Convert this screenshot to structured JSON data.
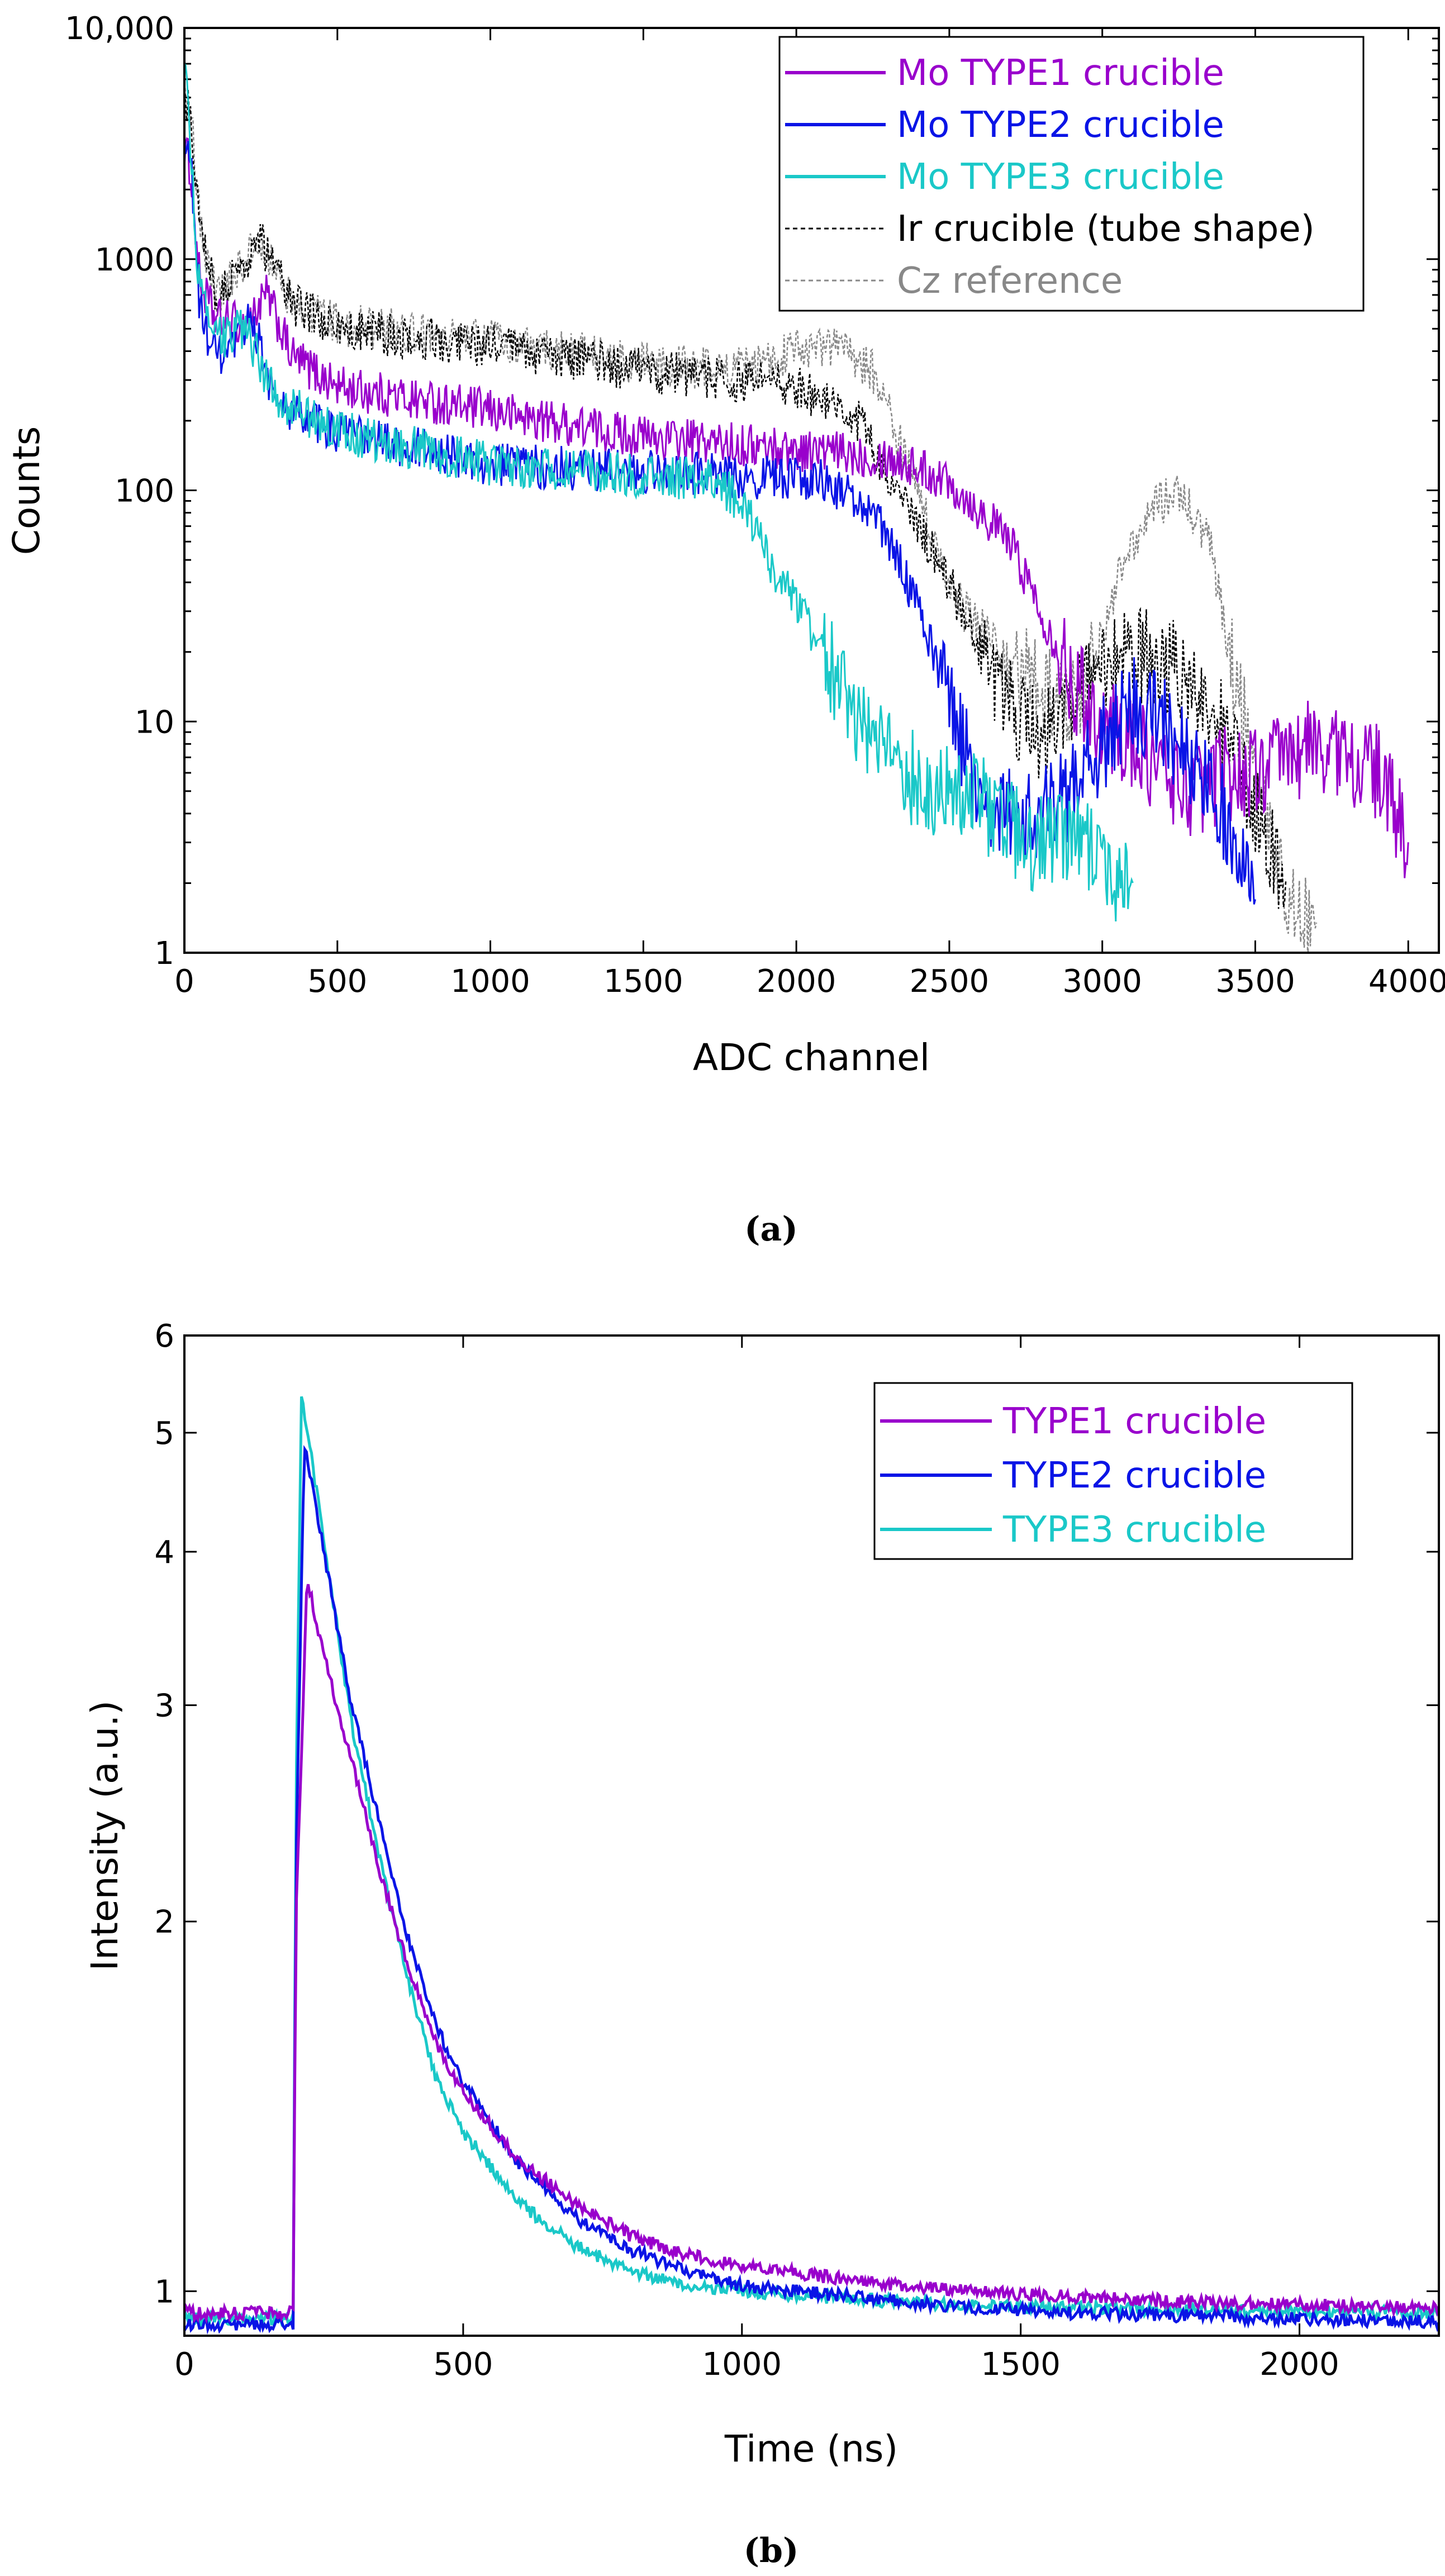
{
  "colors": {
    "type1": "#9900cc",
    "type2": "#0a14e6",
    "type3": "#1ac8c8",
    "ir": "#000000",
    "cz": "#888888"
  },
  "chart_data": [
    {
      "id": "a",
      "type": "line",
      "caption": "(a)",
      "xlabel": "ADC channel",
      "ylabel": "Counts",
      "xscale": "linear",
      "yscale": "log",
      "xlim": [
        0,
        4100
      ],
      "ylim": [
        1,
        10000
      ],
      "xticks": [
        0,
        500,
        1000,
        1500,
        2000,
        2500,
        3000,
        3500,
        4000
      ],
      "xtick_labels": [
        "0",
        "500",
        "1000",
        "1500",
        "2000",
        "2500",
        "3000",
        "3500",
        "4000"
      ],
      "yticks": [
        1,
        10,
        100,
        1000,
        10000
      ],
      "ytick_labels": [
        "1",
        "10",
        "100",
        "1000",
        "10,000"
      ],
      "legend_position": "top-right",
      "series": [
        {
          "name": "Mo TYPE1 crucible",
          "color": "#9900cc",
          "style": "solid",
          "x": [
            0,
            20,
            50,
            100,
            200,
            270,
            350,
            500,
            1000,
            1500,
            2000,
            2300,
            2500,
            2700,
            2800,
            2900,
            3000,
            3100,
            3200,
            3300,
            3400,
            3500,
            3600,
            3700,
            3800,
            3900,
            4000
          ],
          "y": [
            3000,
            2500,
            800,
            550,
            520,
            700,
            380,
            280,
            220,
            170,
            150,
            140,
            110,
            60,
            30,
            15,
            10,
            8,
            6,
            5,
            6,
            6,
            7,
            8,
            7,
            6,
            3
          ]
        },
        {
          "name": "Mo TYPE2 crucible",
          "color": "#0a14e6",
          "style": "solid",
          "x": [
            0,
            20,
            50,
            100,
            150,
            220,
            300,
            500,
            1000,
            1500,
            1800,
            2100,
            2250,
            2350,
            2450,
            2500,
            2600,
            2700,
            2800,
            2900,
            3000,
            3100,
            3200,
            3300,
            3400,
            3500
          ],
          "y": [
            3000,
            2800,
            600,
            380,
            380,
            580,
            230,
            180,
            130,
            120,
            115,
            110,
            80,
            45,
            20,
            12,
            5,
            4,
            4,
            5,
            8,
            12,
            10,
            6,
            4,
            2
          ]
        },
        {
          "name": "Mo TYPE3 crucible",
          "color": "#1ac8c8",
          "style": "solid",
          "x": [
            0,
            20,
            50,
            100,
            200,
            300,
            500,
            1000,
            1500,
            1750,
            1850,
            1950,
            2050,
            2150,
            2250,
            2350,
            2450,
            2550,
            2650,
            2750,
            2850,
            2950,
            3050,
            3100
          ],
          "y": [
            8000,
            3000,
            700,
            450,
            500,
            250,
            180,
            130,
            115,
            110,
            75,
            40,
            25,
            14,
            8,
            6,
            5,
            5,
            4,
            3,
            3,
            3,
            2,
            2
          ]
        },
        {
          "name": "Ir crucible (tube shape)",
          "color": "#000000",
          "style": "dashed",
          "x": [
            0,
            20,
            50,
            100,
            150,
            250,
            350,
            500,
            1000,
            1500,
            2000,
            2200,
            2300,
            2400,
            2500,
            2600,
            2700,
            2800,
            2900,
            3000,
            3100,
            3200,
            3300,
            3400,
            3500,
            3600
          ],
          "y": [
            5000,
            4500,
            1500,
            700,
            800,
            1200,
            650,
            500,
            420,
            330,
            280,
            200,
            120,
            70,
            40,
            20,
            12,
            8,
            12,
            18,
            20,
            18,
            15,
            10,
            4,
            2
          ]
        },
        {
          "name": "Cz reference",
          "color": "#888888",
          "style": "dashed",
          "x": [
            0,
            20,
            50,
            100,
            150,
            250,
            350,
            500,
            1000,
            1500,
            1800,
            2000,
            2150,
            2250,
            2350,
            2450,
            2550,
            2700,
            2850,
            2950,
            3050,
            3150,
            3250,
            3350,
            3450,
            3550,
            3700
          ],
          "y": [
            5000,
            4500,
            1500,
            700,
            800,
            1200,
            650,
            520,
            450,
            350,
            330,
            400,
            420,
            330,
            150,
            60,
            30,
            18,
            12,
            15,
            40,
            80,
            100,
            60,
            12,
            3,
            1
          ]
        }
      ]
    },
    {
      "id": "b",
      "type": "line",
      "caption": "(b)",
      "xlabel": "Time (ns)",
      "ylabel": "Intensity (a.u.)",
      "xscale": "linear",
      "yscale": "log",
      "xlim": [
        0,
        2250
      ],
      "ylim": [
        0.92,
        6
      ],
      "xticks": [
        0,
        500,
        1000,
        1500,
        2000
      ],
      "xtick_labels": [
        "0",
        "500",
        "1000",
        "1500",
        "2000"
      ],
      "yticks": [
        1,
        2,
        3,
        4,
        5,
        6
      ],
      "ytick_labels": [
        "1",
        "2",
        "3",
        "4",
        "5",
        "6"
      ],
      "legend_position": "top-right",
      "series": [
        {
          "name": "TYPE1 crucible",
          "color": "#9900cc",
          "style": "solid",
          "x": [
            0,
            150,
            195,
            200,
            220,
            250,
            300,
            350,
            400,
            450,
            500,
            600,
            700,
            800,
            900,
            1000,
            1200,
            1400,
            1600,
            1800,
            2000,
            2200,
            2250
          ],
          "y": [
            0.96,
            0.96,
            0.96,
            2.0,
            3.8,
            3.3,
            2.7,
            2.2,
            1.85,
            1.6,
            1.45,
            1.28,
            1.18,
            1.11,
            1.07,
            1.05,
            1.02,
            1.0,
            0.99,
            0.98,
            0.975,
            0.97,
            0.97
          ]
        },
        {
          "name": "TYPE2 crucible",
          "color": "#0a14e6",
          "style": "solid",
          "x": [
            0,
            150,
            195,
            200,
            215,
            250,
            300,
            350,
            400,
            450,
            500,
            600,
            700,
            800,
            900,
            1000,
            1200,
            1400,
            1600,
            1800,
            2000,
            2200,
            2250
          ],
          "y": [
            0.94,
            0.94,
            0.94,
            2.2,
            4.9,
            4.0,
            3.0,
            2.4,
            1.95,
            1.65,
            1.48,
            1.27,
            1.15,
            1.08,
            1.04,
            1.01,
            0.99,
            0.97,
            0.96,
            0.955,
            0.95,
            0.945,
            0.945
          ]
        },
        {
          "name": "TYPE3 crucible",
          "color": "#1ac8c8",
          "style": "solid",
          "x": [
            0,
            150,
            195,
            200,
            210,
            250,
            300,
            350,
            400,
            450,
            500,
            600,
            700,
            800,
            900,
            1000,
            1200,
            1400,
            1600,
            1800,
            2000,
            2200,
            2250
          ],
          "y": [
            0.95,
            0.95,
            0.95,
            2.5,
            5.4,
            4.1,
            2.9,
            2.25,
            1.8,
            1.5,
            1.35,
            1.18,
            1.09,
            1.04,
            1.01,
            1.0,
            0.985,
            0.975,
            0.97,
            0.965,
            0.962,
            0.96,
            0.96
          ]
        }
      ]
    }
  ]
}
